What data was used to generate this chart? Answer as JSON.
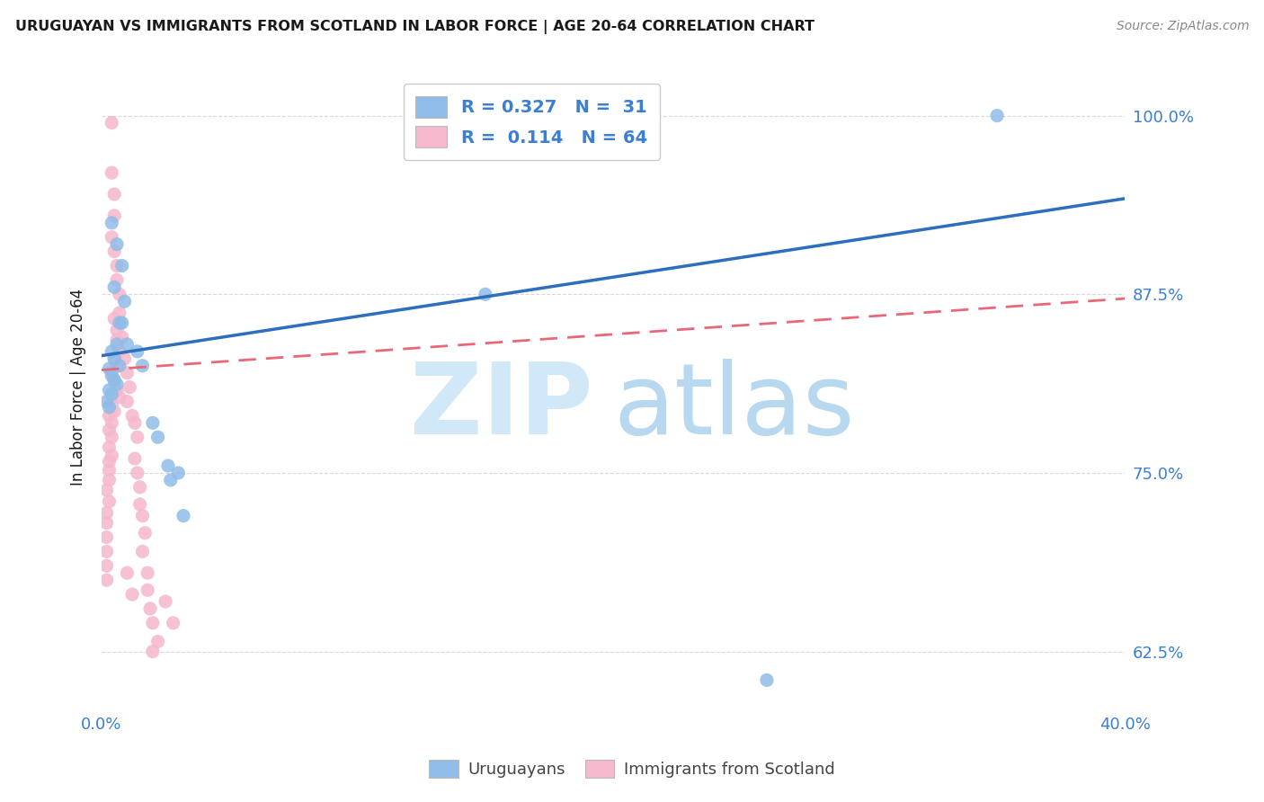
{
  "title": "URUGUAYAN VS IMMIGRANTS FROM SCOTLAND IN LABOR FORCE | AGE 20-64 CORRELATION CHART",
  "source": "Source: ZipAtlas.com",
  "ylabel": "In Labor Force | Age 20-64",
  "yticks": [
    0.625,
    0.75,
    0.875,
    1.0
  ],
  "ytick_labels": [
    "62.5%",
    "75.0%",
    "87.5%",
    "100.0%"
  ],
  "xtick_labels": [
    "0.0%",
    "40.0%"
  ],
  "xlim": [
    0.0,
    0.4
  ],
  "ylim": [
    0.585,
    1.035
  ],
  "uruguayan_color": "#8fbce8",
  "scotland_color": "#f5b8cc",
  "line_blue_color": "#2c6fbe",
  "line_pink_color": "#e8687a",
  "background_color": "#ffffff",
  "grid_color": "#d8d8d8",
  "title_color": "#1a1a1a",
  "axis_label_color": "#3a7fd5",
  "ylabel_color": "#1a1a1a",
  "watermark_zip_color": "#d0e8f8",
  "watermark_atlas_color": "#b8d8f0",
  "blue_line_x": [
    0.0,
    0.4
  ],
  "blue_line_y": [
    0.832,
    0.942
  ],
  "pink_line_x": [
    0.0,
    0.4
  ],
  "pink_line_y": [
    0.822,
    0.872
  ],
  "uruguayan_points": [
    [
      0.004,
      0.925
    ],
    [
      0.006,
      0.91
    ],
    [
      0.008,
      0.895
    ],
    [
      0.005,
      0.88
    ],
    [
      0.009,
      0.87
    ],
    [
      0.007,
      0.855
    ],
    [
      0.006,
      0.84
    ],
    [
      0.008,
      0.855
    ],
    [
      0.01,
      0.84
    ],
    [
      0.004,
      0.835
    ],
    [
      0.005,
      0.83
    ],
    [
      0.007,
      0.825
    ],
    [
      0.003,
      0.823
    ],
    [
      0.004,
      0.818
    ],
    [
      0.005,
      0.815
    ],
    [
      0.006,
      0.812
    ],
    [
      0.003,
      0.808
    ],
    [
      0.004,
      0.805
    ],
    [
      0.002,
      0.8
    ],
    [
      0.003,
      0.796
    ],
    [
      0.014,
      0.835
    ],
    [
      0.016,
      0.825
    ],
    [
      0.02,
      0.785
    ],
    [
      0.022,
      0.775
    ],
    [
      0.026,
      0.755
    ],
    [
      0.027,
      0.745
    ],
    [
      0.03,
      0.75
    ],
    [
      0.032,
      0.72
    ],
    [
      0.15,
      0.875
    ],
    [
      0.35,
      1.0
    ],
    [
      0.26,
      0.605
    ]
  ],
  "scotland_points": [
    [
      0.004,
      0.995
    ],
    [
      0.004,
      0.96
    ],
    [
      0.005,
      0.945
    ],
    [
      0.005,
      0.93
    ],
    [
      0.004,
      0.915
    ],
    [
      0.005,
      0.905
    ],
    [
      0.006,
      0.895
    ],
    [
      0.006,
      0.885
    ],
    [
      0.007,
      0.875
    ],
    [
      0.007,
      0.862
    ],
    [
      0.005,
      0.858
    ],
    [
      0.006,
      0.85
    ],
    [
      0.006,
      0.843
    ],
    [
      0.007,
      0.835
    ],
    [
      0.005,
      0.83
    ],
    [
      0.006,
      0.825
    ],
    [
      0.004,
      0.82
    ],
    [
      0.005,
      0.815
    ],
    [
      0.006,
      0.808
    ],
    [
      0.007,
      0.803
    ],
    [
      0.004,
      0.798
    ],
    [
      0.005,
      0.793
    ],
    [
      0.003,
      0.79
    ],
    [
      0.004,
      0.785
    ],
    [
      0.003,
      0.78
    ],
    [
      0.004,
      0.775
    ],
    [
      0.003,
      0.768
    ],
    [
      0.004,
      0.762
    ],
    [
      0.003,
      0.758
    ],
    [
      0.003,
      0.752
    ],
    [
      0.003,
      0.745
    ],
    [
      0.002,
      0.738
    ],
    [
      0.003,
      0.73
    ],
    [
      0.002,
      0.722
    ],
    [
      0.002,
      0.715
    ],
    [
      0.002,
      0.705
    ],
    [
      0.002,
      0.695
    ],
    [
      0.002,
      0.685
    ],
    [
      0.002,
      0.675
    ],
    [
      0.008,
      0.845
    ],
    [
      0.009,
      0.83
    ],
    [
      0.01,
      0.82
    ],
    [
      0.011,
      0.81
    ],
    [
      0.01,
      0.8
    ],
    [
      0.012,
      0.79
    ],
    [
      0.013,
      0.785
    ],
    [
      0.014,
      0.775
    ],
    [
      0.013,
      0.76
    ],
    [
      0.014,
      0.75
    ],
    [
      0.015,
      0.74
    ],
    [
      0.015,
      0.728
    ],
    [
      0.016,
      0.72
    ],
    [
      0.017,
      0.708
    ],
    [
      0.016,
      0.695
    ],
    [
      0.018,
      0.68
    ],
    [
      0.018,
      0.668
    ],
    [
      0.019,
      0.655
    ],
    [
      0.02,
      0.645
    ],
    [
      0.022,
      0.632
    ],
    [
      0.01,
      0.68
    ],
    [
      0.012,
      0.665
    ],
    [
      0.025,
      0.66
    ],
    [
      0.028,
      0.645
    ],
    [
      0.02,
      0.625
    ]
  ]
}
